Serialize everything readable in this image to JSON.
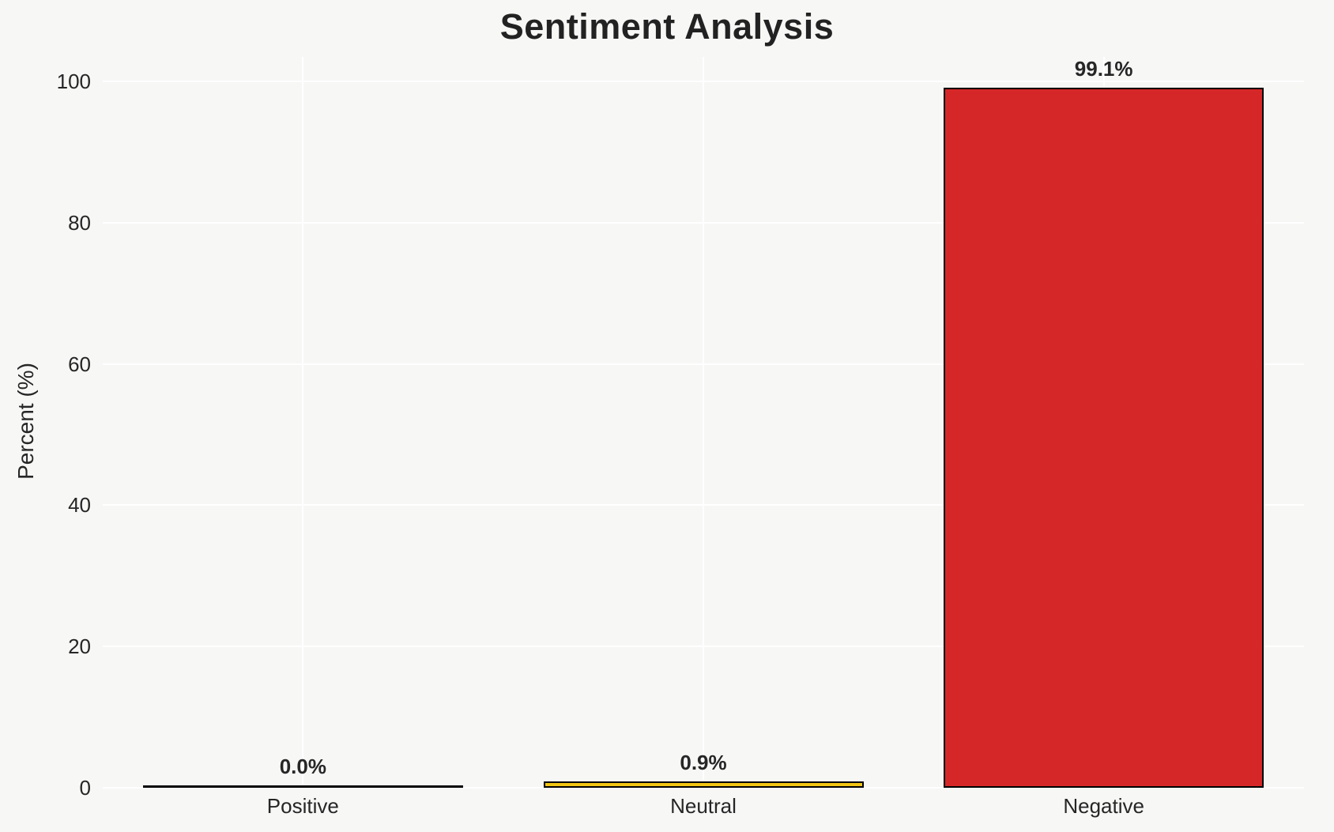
{
  "chart_data": {
    "type": "bar",
    "title": "Sentiment Analysis",
    "ylabel": "Percent (%)",
    "xlabel": "",
    "categories": [
      "Positive",
      "Neutral",
      "Negative"
    ],
    "values": [
      0.0,
      0.9,
      99.1
    ],
    "value_labels": [
      "0.0%",
      "0.9%",
      "99.1%"
    ],
    "bar_colors": [
      null,
      "#f1c513",
      "#d62728"
    ],
    "bar_edge_color": "#000000",
    "yticks": [
      0,
      20,
      40,
      60,
      80,
      100
    ],
    "ytick_labels": [
      "0",
      "20",
      "40",
      "60",
      "80",
      "100"
    ],
    "ylim": [
      0,
      103.5
    ],
    "grid": true,
    "gridline_color": "#ffffff",
    "background_color": "#f7f7f6",
    "legend": "none"
  }
}
